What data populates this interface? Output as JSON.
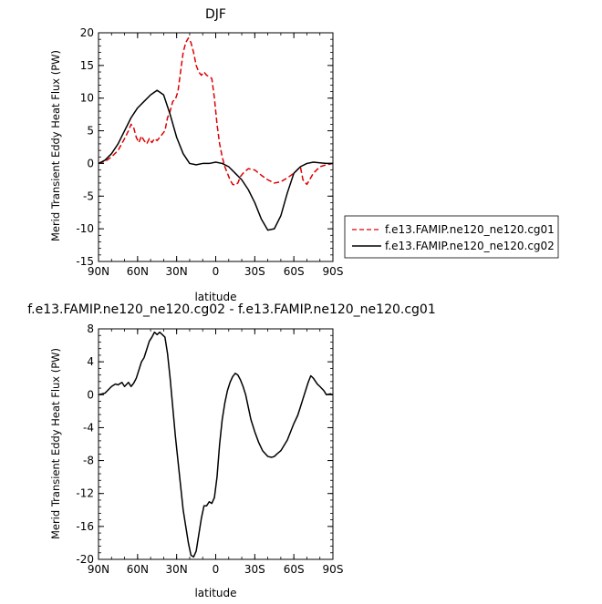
{
  "chart_data": [
    {
      "type": "line",
      "title": "DJF",
      "xlabel": "latitude",
      "ylabel": "Merid Transient Eddy Heat Flux (PW)",
      "xlim": [
        90,
        -90
      ],
      "ylim": [
        -15,
        20
      ],
      "xticks": [
        {
          "value": 90,
          "label": "90N"
        },
        {
          "value": 60,
          "label": "60N"
        },
        {
          "value": 30,
          "label": "30N"
        },
        {
          "value": 0,
          "label": "0"
        },
        {
          "value": -30,
          "label": "30S"
        },
        {
          "value": -60,
          "label": "60S"
        },
        {
          "value": -90,
          "label": "90S"
        }
      ],
      "yticks": [
        -15,
        -10,
        -5,
        0,
        5,
        10,
        15,
        20
      ],
      "legend_position": "right",
      "series": [
        {
          "name": "f.e13.FAMIP.ne120_ne120.cg01",
          "color": "#dd0000",
          "dash": "dashed",
          "x": [
            90,
            85,
            80,
            75,
            70,
            67,
            65,
            63,
            61,
            59,
            57,
            55,
            53,
            51,
            49,
            47,
            45,
            43,
            41,
            39,
            37,
            35,
            33,
            31,
            29,
            27,
            25,
            23,
            21,
            19,
            17,
            15,
            13,
            11,
            9,
            7,
            5,
            3,
            1,
            -1,
            -3,
            -5,
            -7,
            -9,
            -11,
            -13,
            -15,
            -17,
            -19,
            -21,
            -25,
            -30,
            -35,
            -40,
            -45,
            -50,
            -55,
            -60,
            -65,
            -67,
            -70,
            -75,
            -80,
            -85,
            -90
          ],
          "y": [
            0,
            0.3,
            1,
            2,
            3.8,
            5,
            6,
            5.5,
            4,
            3.2,
            4.2,
            3.5,
            3,
            3.8,
            3.2,
            3.8,
            3.5,
            4,
            4.5,
            5,
            7,
            8,
            9.5,
            9.8,
            11,
            14,
            17,
            18.5,
            19.2,
            18.5,
            17,
            15,
            14,
            13.5,
            14,
            13.5,
            13.3,
            13,
            10,
            6,
            3,
            1,
            -0.5,
            -1.5,
            -2.5,
            -3.2,
            -3.3,
            -3,
            -2,
            -1.5,
            -0.8,
            -1,
            -1.8,
            -2.5,
            -3,
            -2.8,
            -2.2,
            -1.5,
            -0.5,
            -2.5,
            -3.2,
            -1.5,
            -0.5,
            -0.2,
            0
          ]
        },
        {
          "name": "f.e13.FAMIP.ne120_ne120.cg02",
          "color": "#000000",
          "dash": "solid",
          "x": [
            90,
            85,
            80,
            75,
            70,
            65,
            60,
            55,
            50,
            45,
            40,
            35,
            30,
            25,
            20,
            15,
            10,
            5,
            0,
            -5,
            -10,
            -15,
            -20,
            -25,
            -30,
            -35,
            -40,
            -45,
            -50,
            -55,
            -60,
            -65,
            -70,
            -75,
            -80,
            -85,
            -90
          ],
          "y": [
            0,
            0.5,
            1.5,
            3,
            5,
            7,
            8.5,
            9.5,
            10.5,
            11.2,
            10.5,
            7.5,
            4,
            1.5,
            0,
            -0.2,
            0,
            0,
            0.2,
            0,
            -0.5,
            -1.5,
            -2.5,
            -4,
            -6,
            -8.5,
            -10.2,
            -10,
            -8,
            -4.5,
            -1.5,
            -0.5,
            0,
            0.2,
            0.1,
            0,
            0
          ]
        }
      ]
    },
    {
      "type": "line",
      "title": "f.e13.FAMIP.ne120_ne120.cg02 - f.e13.FAMIP.ne120_ne120.cg01",
      "xlabel": "latitude",
      "ylabel": "Merid Transient Eddy Heat Flux (PW)",
      "xlim": [
        90,
        -90
      ],
      "ylim": [
        -20,
        8
      ],
      "xticks": [
        {
          "value": 90,
          "label": "90N"
        },
        {
          "value": 60,
          "label": "60N"
        },
        {
          "value": 30,
          "label": "30N"
        },
        {
          "value": 0,
          "label": "0"
        },
        {
          "value": -30,
          "label": "30S"
        },
        {
          "value": -60,
          "label": "60S"
        },
        {
          "value": -90,
          "label": "90S"
        }
      ],
      "yticks": [
        -20,
        -16,
        -12,
        -8,
        -4,
        0,
        4,
        8
      ],
      "series": [
        {
          "color": "#000000",
          "dash": "solid",
          "x": [
            90,
            85,
            80,
            77,
            75,
            72,
            70,
            67,
            65,
            63,
            61,
            59,
            57,
            55,
            53,
            51,
            49,
            47,
            45,
            43,
            41,
            39,
            37,
            35,
            33,
            31,
            29,
            27,
            25,
            23,
            21,
            19,
            17,
            15,
            13,
            11,
            9,
            7,
            5,
            3,
            1,
            -1,
            -3,
            -5,
            -7,
            -9,
            -11,
            -13,
            -15,
            -17,
            -19,
            -21,
            -23,
            -25,
            -27,
            -30,
            -33,
            -36,
            -40,
            -43,
            -45,
            -47,
            -50,
            -55,
            -60,
            -63,
            -65,
            -67,
            -69,
            -71,
            -73,
            -75,
            -78,
            -80,
            -83,
            -85,
            -88,
            -90
          ],
          "y": [
            0,
            0.2,
            1,
            1.3,
            1.2,
            1.5,
            1,
            1.5,
            1,
            1.4,
            2,
            3,
            4,
            4.5,
            5.5,
            6.5,
            7,
            7.6,
            7.3,
            7.6,
            7.3,
            7,
            5,
            2,
            -1.5,
            -5,
            -8,
            -11,
            -14,
            -16,
            -18,
            -19.5,
            -19.7,
            -19,
            -17,
            -15,
            -13.5,
            -13.5,
            -13,
            -13.2,
            -12.5,
            -10,
            -6,
            -3,
            -1,
            0.5,
            1.5,
            2.2,
            2.6,
            2.4,
            1.8,
            1,
            0,
            -1.5,
            -3,
            -4.5,
            -5.8,
            -6.8,
            -7.5,
            -7.6,
            -7.5,
            -7.2,
            -6.8,
            -5.5,
            -3.5,
            -2.5,
            -1.5,
            -0.5,
            0.5,
            1.5,
            2.3,
            2,
            1.3,
            1,
            0.5,
            0,
            0.1,
            0
          ]
        }
      ]
    }
  ]
}
